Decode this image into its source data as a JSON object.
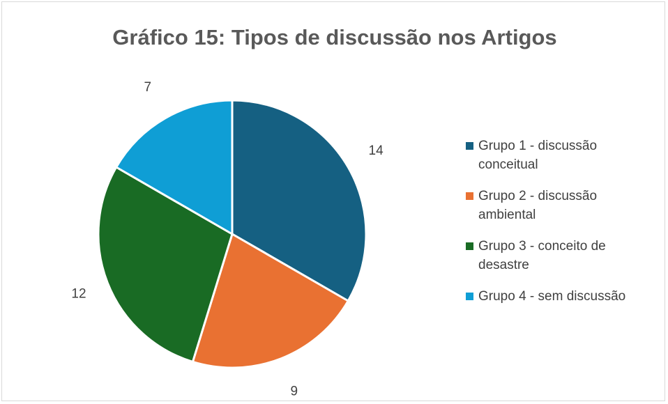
{
  "chart_data": {
    "type": "pie",
    "title": "Gráfico 15: Tipos de discussão nos Artigos",
    "categories": [
      "Grupo 1 - discussão conceitual",
      "Grupo 2 - discussão ambiental",
      "Grupo 3 - conceito de desastre",
      "Grupo 4 - sem discussão"
    ],
    "values": [
      14,
      9,
      12,
      7
    ],
    "colors": [
      "#156082",
      "#e97132",
      "#196b24",
      "#0f9ed5"
    ],
    "legend": "right"
  }
}
